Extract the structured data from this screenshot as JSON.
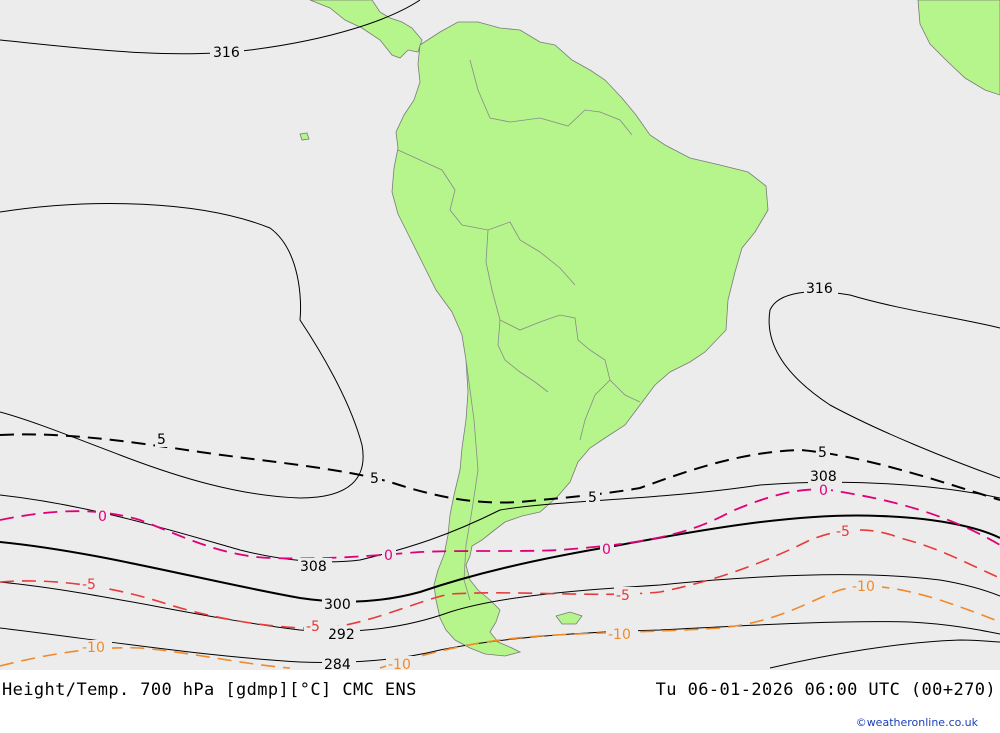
{
  "title": "Height/Temp. 700 hPa [gdmp][°C] CMC ENS",
  "valid_time": "Tu 06-01-2026 06:00 UTC (00+270)",
  "credit": "©weatheronline.co.uk",
  "colors": {
    "ocean": "#ececec",
    "land": "#b6f48c",
    "height_contour": "#000000",
    "temp_dash_5": "#000000",
    "temp_0": "#e0007a",
    "temp_minus5": "#e83a3a",
    "temp_minus10": "#f08a2a"
  },
  "height_labels": [
    "316",
    "316",
    "308",
    "308",
    "300",
    "292",
    "284"
  ],
  "temp_labels": [
    "5",
    "5",
    "5",
    "5",
    "0",
    "0",
    "0",
    "0",
    "-5",
    "-5",
    "-5",
    "-5",
    "-10",
    "-10",
    "-10",
    "-10"
  ]
}
